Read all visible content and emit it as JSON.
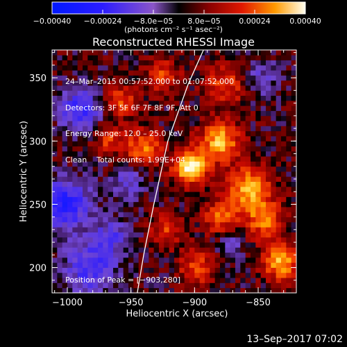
{
  "chart_data": {
    "type": "heatmap",
    "title": "Reconstructed RHESSI Image",
    "xlabel": "Heliocentric X (arcsec)",
    "ylabel": "Heliocentric Y (arcsec)",
    "xlim": [
      -1012,
      -820
    ],
    "ylim": [
      180,
      372
    ],
    "x_ticks": [
      -1000,
      -950,
      -900,
      -850
    ],
    "y_ticks": [
      200,
      250,
      300,
      350
    ],
    "x_tick_labels": [
      "−1000",
      "−950",
      "−900",
      "−850"
    ],
    "y_tick_labels": [
      "200",
      "250",
      "300",
      "350"
    ],
    "colorbar": {
      "range": [
        -0.0004,
        0.0004
      ],
      "tick_values": [
        -0.0004,
        -0.00024,
        -8e-05,
        8e-05,
        0.00024,
        0.0004
      ],
      "tick_labels": [
        "−0.00040",
        "−0.00024",
        "−8.0e−05",
        "8.0e−05",
        "0.00024",
        "0.00040"
      ],
      "unit_label": "(photons cm⁻² s⁻¹ asec⁻²)"
    },
    "info_lines": [
      "24–Mar–2015 00:57:52.000 to 01:07:52.000",
      "Detectors: 3F 5F 6F 7F 8F 9F, Att 0",
      "Energy Range: 12.0 – 25.0 keV",
      "Clean    Total counts: 1.99E+04"
    ],
    "peak_label": "Position of Peak = [−903,280]",
    "peak": [
      -903,
      280
    ],
    "limb_points": [
      [
        -945,
        180
      ],
      [
        -940,
        210
      ],
      [
        -932,
        250
      ],
      [
        -921,
        300
      ],
      [
        -905,
        345
      ],
      [
        -893,
        372
      ]
    ],
    "sources": [
      {
        "x": -903,
        "y": 280,
        "amp": 0.00042,
        "w": 9
      },
      {
        "x": -880,
        "y": 300,
        "amp": 0.0003,
        "w": 11
      },
      {
        "x": -940,
        "y": 295,
        "amp": 0.00024,
        "w": 10
      },
      {
        "x": -968,
        "y": 302,
        "amp": 0.00017,
        "w": 8
      },
      {
        "x": -958,
        "y": 332,
        "amp": 0.00019,
        "w": 9
      },
      {
        "x": -925,
        "y": 352,
        "amp": 0.00018,
        "w": 9
      },
      {
        "x": -858,
        "y": 262,
        "amp": 0.0003,
        "w": 12
      },
      {
        "x": -845,
        "y": 238,
        "amp": 0.00024,
        "w": 10
      },
      {
        "x": -880,
        "y": 240,
        "amp": 0.0002,
        "w": 9
      },
      {
        "x": -832,
        "y": 205,
        "amp": 0.0003,
        "w": 10
      },
      {
        "x": -898,
        "y": 200,
        "amp": 0.00018,
        "w": 10
      },
      {
        "x": -875,
        "y": 345,
        "amp": 0.00018,
        "w": 12
      },
      {
        "x": -922,
        "y": 230,
        "amp": 0.00016,
        "w": 9
      },
      {
        "x": -990,
        "y": 325,
        "amp": -0.00022,
        "w": 12
      },
      {
        "x": -1002,
        "y": 250,
        "amp": -0.00028,
        "w": 14
      },
      {
        "x": -982,
        "y": 200,
        "amp": -0.00022,
        "w": 14
      },
      {
        "x": -965,
        "y": 225,
        "amp": -0.00016,
        "w": 10
      },
      {
        "x": -952,
        "y": 268,
        "amp": -0.00015,
        "w": 9
      },
      {
        "x": -848,
        "y": 350,
        "amp": -0.00012,
        "w": 11
      },
      {
        "x": -872,
        "y": 218,
        "amp": -0.00012,
        "w": 7
      }
    ]
  },
  "footer": {
    "timestamp": "13–Sep–2017 07:02"
  }
}
